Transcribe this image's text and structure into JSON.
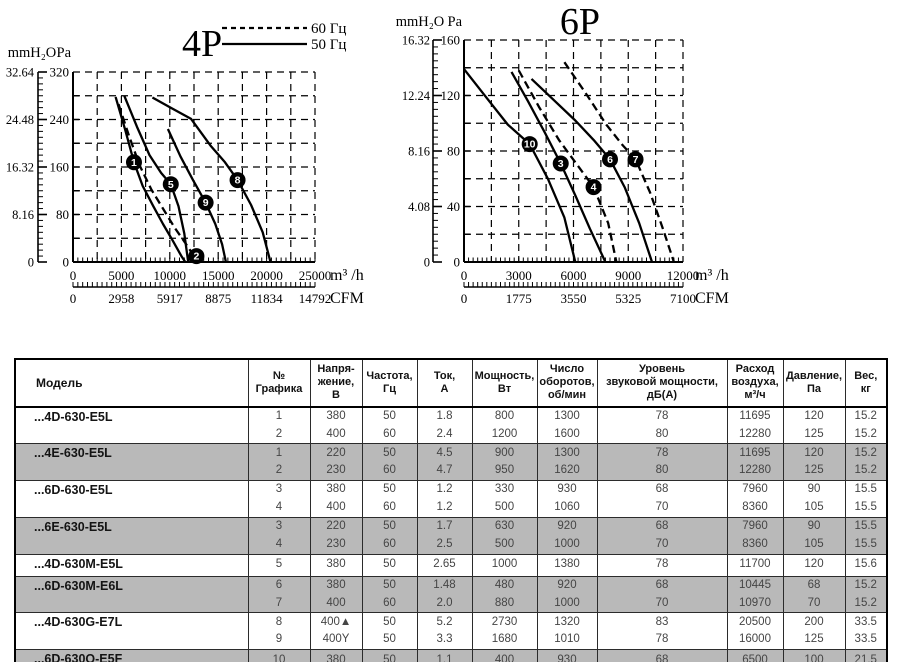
{
  "chart_data": [
    {
      "id": "4p",
      "type": "line",
      "title": "4P",
      "legend": [
        {
          "label": "60 Гц",
          "style": "dashed"
        },
        {
          "label": "50 Гц",
          "style": "solid"
        }
      ],
      "x_axis": {
        "unit": "m³ /h",
        "min": 0,
        "max": 25000,
        "tick_labels": [
          0,
          5000,
          10000,
          15000,
          20000,
          25000
        ],
        "grid_step": 2500,
        "minor_tick_step": 500
      },
      "x_axis_secondary": {
        "unit": "CFM",
        "tick_labels": [
          0,
          2958,
          5917,
          8875,
          11834,
          14792
        ]
      },
      "y_axis": {
        "unit": "Pa",
        "min": 0,
        "max": 320,
        "tick_labels": [
          320,
          240,
          160,
          80,
          0
        ],
        "grid_step": 40
      },
      "y_axis_secondary": {
        "unit": "mmH₂O",
        "tick_labels": [
          "32.64",
          "24.48",
          "16.32",
          "8.16",
          "0"
        ]
      },
      "grid": "dashed",
      "series": [
        {
          "graph": "1",
          "frequency_hz": 50,
          "style": "solid",
          "marker": {
            "label": "1",
            "x": 6300,
            "y": 168
          },
          "points": [
            [
              4400,
              278
            ],
            [
              5400,
              222
            ],
            [
              6300,
              168
            ],
            [
              7200,
              128
            ],
            [
              8300,
              94
            ],
            [
              9300,
              64
            ],
            [
              10300,
              36
            ],
            [
              11200,
              10
            ],
            [
              11600,
              0
            ]
          ]
        },
        {
          "graph": "2",
          "frequency_hz": 60,
          "style": "dashed",
          "marker": {
            "label": "2",
            "x": 12750,
            "y": 10
          },
          "points": [
            [
              4700,
              266
            ],
            [
              5800,
              212
            ],
            [
              6900,
              162
            ],
            [
              8100,
              122
            ],
            [
              9300,
              90
            ],
            [
              10500,
              58
            ],
            [
              11600,
              32
            ],
            [
              12500,
              10
            ],
            [
              12900,
              0
            ]
          ]
        },
        {
          "graph": "5",
          "frequency_hz": 50,
          "style": "solid",
          "marker": {
            "label": "5",
            "x": 10100,
            "y": 131
          },
          "points": [
            [
              5300,
              280
            ],
            [
              6600,
              228
            ],
            [
              7900,
              180
            ],
            [
              9100,
              150
            ],
            [
              10100,
              131
            ],
            [
              10900,
              94
            ],
            [
              11500,
              48
            ],
            [
              11900,
              0
            ]
          ]
        },
        {
          "graph": "9",
          "frequency_hz": 50,
          "style": "solid",
          "marker": {
            "label": "9",
            "x": 13700,
            "y": 100
          },
          "points": [
            [
              9800,
              224
            ],
            [
              11100,
              178
            ],
            [
              12400,
              138
            ],
            [
              13700,
              100
            ],
            [
              14700,
              64
            ],
            [
              15400,
              30
            ],
            [
              15800,
              0
            ]
          ]
        },
        {
          "graph": "8",
          "frequency_hz": 50,
          "style": "solid",
          "marker": {
            "label": "8",
            "x": 17000,
            "y": 138
          },
          "points": [
            [
              8200,
              277
            ],
            [
              10200,
              259
            ],
            [
              12200,
              241
            ],
            [
              14200,
              196
            ],
            [
              15700,
              168
            ],
            [
              17000,
              138
            ],
            [
              18400,
              96
            ],
            [
              19600,
              50
            ],
            [
              20400,
              0
            ]
          ]
        }
      ]
    },
    {
      "id": "6p",
      "type": "line",
      "title": "6P",
      "legend": [],
      "x_axis": {
        "unit": "m³ /h",
        "min": 0,
        "max": 12000,
        "tick_labels": [
          0,
          3000,
          6000,
          9000,
          12000
        ],
        "grid_step": 1500,
        "minor_tick_step": 250
      },
      "x_axis_secondary": {
        "unit": "CFM",
        "tick_labels": [
          0,
          1775,
          3550,
          5325,
          7100
        ]
      },
      "y_axis": {
        "unit": "Pa",
        "min": 0,
        "max": 160,
        "tick_labels": [
          160,
          120,
          80,
          40,
          0
        ],
        "grid_step": 20
      },
      "y_axis_secondary": {
        "unit": "mmH₂O",
        "tick_labels": [
          "16.32",
          "12.24",
          "8.16",
          "4.08",
          "0"
        ]
      },
      "grid": "dashed",
      "series": [
        {
          "graph": "10",
          "frequency_hz": 50,
          "style": "solid",
          "marker": {
            "label": "10",
            "x": 3600,
            "y": 85
          },
          "points": [
            [
              0,
              139
            ],
            [
              1200,
              119
            ],
            [
              2400,
              99
            ],
            [
              3600,
              85
            ],
            [
              4600,
              60
            ],
            [
              5500,
              32
            ],
            [
              6100,
              0
            ]
          ]
        },
        {
          "graph": "3",
          "frequency_hz": 50,
          "style": "solid",
          "marker": {
            "label": "3",
            "x": 5300,
            "y": 71
          },
          "points": [
            [
              2600,
              137
            ],
            [
              3500,
              116
            ],
            [
              4400,
              94
            ],
            [
              5300,
              71
            ],
            [
              6100,
              48
            ],
            [
              6900,
              24
            ],
            [
              7750,
              0
            ]
          ]
        },
        {
          "graph": "4",
          "frequency_hz": 60,
          "style": "dashed",
          "marker": {
            "label": "4",
            "x": 7100,
            "y": 54
          },
          "points": [
            [
              3000,
              138
            ],
            [
              4100,
              112
            ],
            [
              5200,
              88
            ],
            [
              6200,
              70
            ],
            [
              7100,
              54
            ],
            [
              7900,
              28
            ],
            [
              8350,
              0
            ]
          ]
        },
        {
          "graph": "6",
          "frequency_hz": 50,
          "style": "solid",
          "marker": {
            "label": "6",
            "x": 8000,
            "y": 74
          },
          "points": [
            [
              3700,
              132
            ],
            [
              4900,
              117
            ],
            [
              6100,
              102
            ],
            [
              7100,
              88
            ],
            [
              8000,
              74
            ],
            [
              8800,
              54
            ],
            [
              9600,
              28
            ],
            [
              10300,
              0
            ]
          ]
        },
        {
          "graph": "7",
          "frequency_hz": 60,
          "style": "dashed",
          "marker": {
            "label": "7",
            "x": 9400,
            "y": 74
          },
          "points": [
            [
              5500,
              144
            ],
            [
              6700,
              121
            ],
            [
              7800,
              99
            ],
            [
              8700,
              84
            ],
            [
              9400,
              74
            ],
            [
              10200,
              50
            ],
            [
              10900,
              24
            ],
            [
              11500,
              0
            ]
          ]
        }
      ]
    }
  ],
  "table": {
    "headers": [
      "Модель",
      "№\nГрафика",
      "Напря-\nжение,\nВ",
      "Частота,\nГц",
      "Ток,\nА",
      "Мощность,\nВт",
      "Число\nоборотов,\nоб/мин",
      "Уровень\nзвуковой мощности,\nдБ(А)",
      "Расход\nвоздуха,\nм³/ч",
      "Давление,\nПа",
      "Вес,\nкг"
    ],
    "groups": [
      {
        "model": "...4D-630-E5L",
        "shaded": false,
        "rows": [
          [
            "1",
            "380",
            "50",
            "1.8",
            "800",
            "1300",
            "78",
            "11695",
            "120",
            "15.2"
          ],
          [
            "2",
            "400",
            "60",
            "2.4",
            "1200",
            "1600",
            "80",
            "12280",
            "125",
            "15.2"
          ]
        ]
      },
      {
        "model": "...4E-630-E5L",
        "shaded": true,
        "rows": [
          [
            "1",
            "220",
            "50",
            "4.5",
            "900",
            "1300",
            "78",
            "11695",
            "120",
            "15.2"
          ],
          [
            "2",
            "230",
            "60",
            "4.7",
            "950",
            "1620",
            "80",
            "12280",
            "125",
            "15.2"
          ]
        ]
      },
      {
        "model": "...6D-630-E5L",
        "shaded": false,
        "rows": [
          [
            "3",
            "380",
            "50",
            "1.2",
            "330",
            "930",
            "68",
            "7960",
            "90",
            "15.5"
          ],
          [
            "4",
            "400",
            "60",
            "1.2",
            "500",
            "1060",
            "70",
            "8360",
            "105",
            "15.5"
          ]
        ]
      },
      {
        "model": "...6E-630-E5L",
        "shaded": true,
        "rows": [
          [
            "3",
            "220",
            "50",
            "1.7",
            "630",
            "920",
            "68",
            "7960",
            "90",
            "15.5"
          ],
          [
            "4",
            "230",
            "60",
            "2.5",
            "500",
            "1000",
            "70",
            "8360",
            "105",
            "15.5"
          ]
        ]
      },
      {
        "model": "...4D-630M-E5L",
        "shaded": false,
        "rows": [
          [
            "5",
            "380",
            "50",
            "2.65",
            "1000",
            "1380",
            "78",
            "11700",
            "120",
            "15.6"
          ]
        ]
      },
      {
        "model": "...6D-630M-E6L",
        "shaded": true,
        "rows": [
          [
            "6",
            "380",
            "50",
            "1.48",
            "480",
            "920",
            "68",
            "10445",
            "68",
            "15.2"
          ],
          [
            "7",
            "400",
            "60",
            "2.0",
            "880",
            "1000",
            "70",
            "10970",
            "70",
            "15.2"
          ]
        ]
      },
      {
        "model": "...4D-630G-E7L",
        "shaded": false,
        "rows": [
          [
            "8",
            "400▲",
            "50",
            "5.2",
            "2730",
            "1320",
            "83",
            "20500",
            "200",
            "33.5"
          ],
          [
            "9",
            "400Y",
            "50",
            "3.3",
            "1680",
            "1010",
            "78",
            "16000",
            "125",
            "33.5"
          ]
        ]
      },
      {
        "model": "...6D-630Q-E5F",
        "shaded": true,
        "rows": [
          [
            "10",
            "380",
            "50",
            "1.1",
            "400",
            "930",
            "68",
            "6500",
            "100",
            "21.5"
          ]
        ]
      }
    ]
  },
  "colors": {
    "ink": "#000000",
    "shaded_row": "#b9b9b9",
    "table_text": "#454545",
    "background": "#ffffff"
  }
}
